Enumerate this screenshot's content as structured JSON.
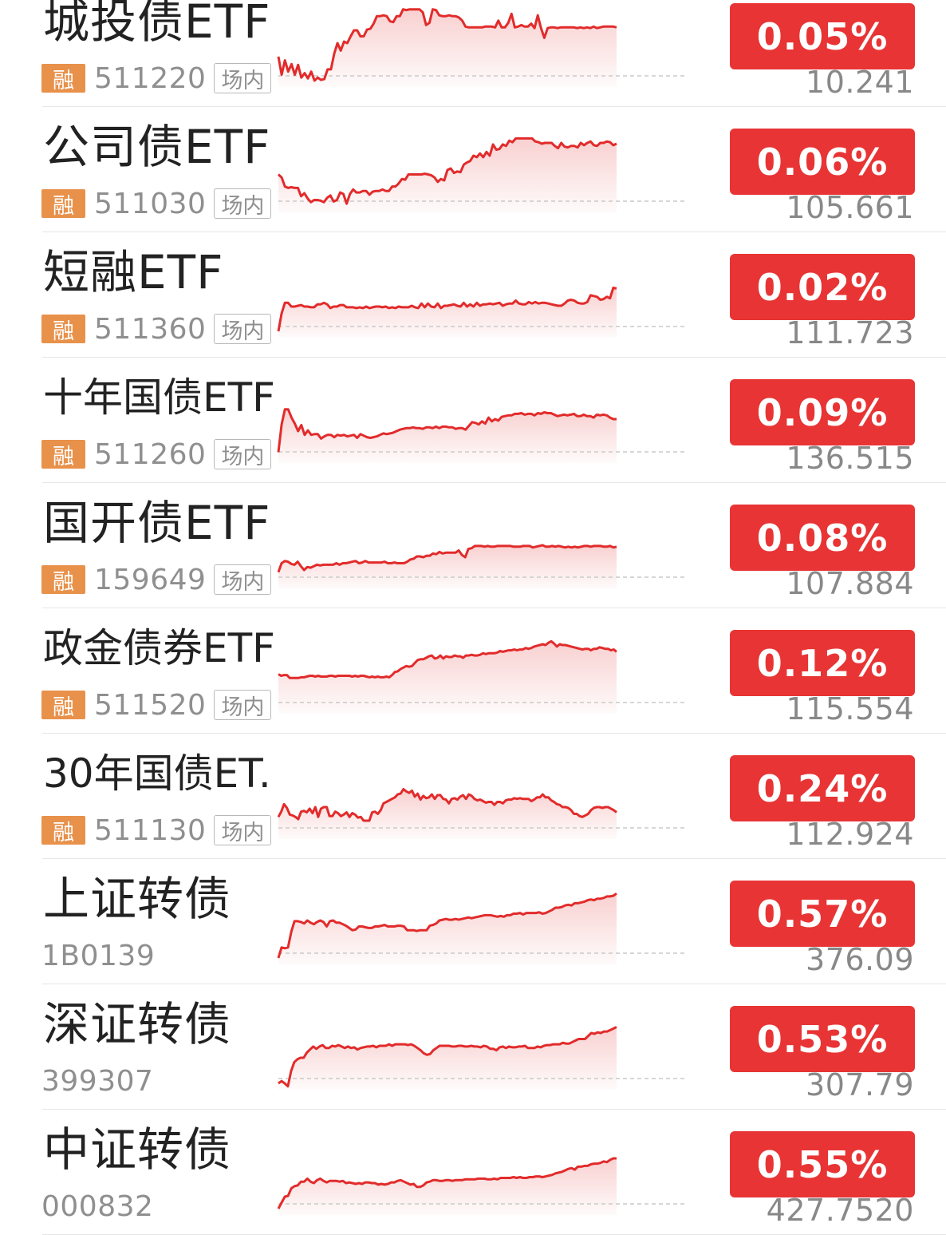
{
  "rows": [
    {
      "name": "城投债ETF",
      "margin": "融",
      "code": "511220",
      "venue": "场内",
      "change": "0.05%",
      "price": "10.241",
      "trend": [
        68,
        92,
        73,
        88,
        78,
        92,
        79,
        96,
        90,
        97,
        88,
        100,
        96,
        99,
        98,
        85,
        85,
        64,
        50,
        60,
        48,
        50,
        41,
        33,
        33,
        41,
        41,
        32,
        31,
        24,
        14,
        14,
        13,
        14,
        21,
        22,
        14,
        14,
        5,
        6,
        5,
        5,
        5,
        5,
        9,
        26,
        23,
        5,
        6,
        13,
        14,
        14,
        13,
        14,
        14,
        16,
        20,
        28,
        29,
        29,
        29,
        29,
        29,
        28,
        28,
        28,
        29,
        20,
        29,
        29,
        23,
        11,
        29,
        28,
        26,
        28,
        28,
        24,
        30,
        13,
        30,
        43,
        30,
        29,
        29,
        30,
        29,
        29,
        29,
        29,
        29,
        30,
        29,
        30,
        29,
        30,
        28,
        30,
        29,
        28,
        28,
        28,
        28,
        29
      ]
    },
    {
      "name": "公司债ETF",
      "margin": "融",
      "code": "511030",
      "venue": "场内",
      "change": "0.06%",
      "price": "105.661",
      "trend": [
        58,
        62,
        74,
        76,
        75,
        76,
        76,
        87,
        83,
        90,
        95,
        92,
        92,
        93,
        95,
        89,
        86,
        94,
        92,
        82,
        84,
        97,
        84,
        78,
        82,
        82,
        80,
        80,
        85,
        81,
        80,
        80,
        78,
        80,
        80,
        74,
        74,
        70,
        64,
        65,
        58,
        58,
        58,
        58,
        58,
        57,
        58,
        59,
        62,
        68,
        64,
        66,
        52,
        50,
        56,
        54,
        55,
        45,
        42,
        40,
        33,
        35,
        30,
        35,
        28,
        33,
        18,
        25,
        24,
        18,
        20,
        13,
        15,
        10,
        10,
        10,
        10,
        10,
        10,
        14,
        15,
        17,
        16,
        16,
        16,
        20,
        23,
        16,
        21,
        22,
        20,
        20,
        22,
        16,
        19,
        16,
        14,
        19,
        20,
        16,
        16,
        14,
        15,
        19,
        17
      ]
    },
    {
      "name": "短融ETF",
      "margin": "融",
      "code": "511360",
      "venue": "场内",
      "change": "0.02%",
      "price": "111.723",
      "trend": [
        100,
        76,
        62,
        62,
        67,
        67,
        66,
        65,
        67,
        67,
        68,
        68,
        64,
        64,
        62,
        64,
        69,
        67,
        67,
        65,
        65,
        68,
        68,
        68,
        69,
        68,
        69,
        67,
        69,
        68,
        67,
        67,
        68,
        67,
        69,
        68,
        69,
        67,
        68,
        68,
        68,
        66,
        68,
        69,
        63,
        68,
        63,
        67,
        68,
        63,
        69,
        66,
        66,
        65,
        64,
        66,
        67,
        62,
        67,
        64,
        67,
        62,
        66,
        64,
        64,
        63,
        64,
        63,
        62,
        66,
        64,
        63,
        63,
        59,
        63,
        64,
        64,
        61,
        63,
        61,
        63,
        62,
        62,
        63,
        64,
        65,
        66,
        66,
        63,
        59,
        58,
        59,
        62,
        63,
        63,
        61,
        52,
        53,
        54,
        58,
        57,
        54,
        56,
        42,
        43
      ]
    },
    {
      "name": "十年国债ETF",
      "margin": "融",
      "code": "511260",
      "venue": "场内",
      "change": "0.09%",
      "price": "136.515",
      "trend": [
        94,
        57,
        37,
        37,
        48,
        56,
        66,
        58,
        71,
        65,
        71,
        70,
        70,
        76,
        73,
        71,
        71,
        74,
        71,
        72,
        71,
        73,
        72,
        71,
        75,
        70,
        72,
        74,
        75,
        74,
        73,
        71,
        69,
        70,
        69,
        68,
        66,
        64,
        63,
        62,
        62,
        61,
        62,
        62,
        63,
        61,
        61,
        62,
        60,
        62,
        60,
        60,
        61,
        61,
        63,
        62,
        62,
        64,
        59,
        54,
        55,
        57,
        53,
        56,
        48,
        53,
        50,
        52,
        47,
        46,
        45,
        45,
        43,
        43,
        42,
        44,
        43,
        43,
        45,
        42,
        43,
        41,
        42,
        42,
        44,
        46,
        45,
        44,
        45,
        44,
        43,
        46,
        46,
        44,
        46,
        46,
        48,
        44,
        45,
        44,
        45,
        48,
        50,
        50
      ]
    },
    {
      "name": "国开债ETF",
      "margin": "融",
      "code": "159649",
      "venue": "场内",
      "change": "0.08%",
      "price": "107.884",
      "trend": [
        87,
        75,
        72,
        73,
        76,
        77,
        73,
        79,
        84,
        80,
        81,
        79,
        77,
        78,
        77,
        77,
        77,
        77,
        75,
        77,
        75,
        75,
        74,
        73,
        72,
        75,
        74,
        72,
        74,
        74,
        74,
        74,
        74,
        73,
        75,
        75,
        74,
        75,
        75,
        75,
        73,
        70,
        69,
        66,
        66,
        67,
        65,
        65,
        62,
        63,
        60,
        62,
        61,
        61,
        61,
        61,
        58,
        64,
        67,
        56,
        55,
        52,
        52,
        52,
        53,
        52,
        53,
        53,
        52,
        52,
        52,
        52,
        52,
        53,
        53,
        53,
        52,
        52,
        52,
        54,
        53,
        52,
        51,
        53,
        53,
        52,
        53,
        52,
        53,
        54,
        53,
        54,
        53,
        54,
        53,
        52,
        52,
        53,
        52,
        52,
        52,
        53,
        53,
        52,
        54,
        53
      ]
    },
    {
      "name": "政金债券ETF",
      "margin": "融",
      "code": "511520",
      "venue": "场内",
      "change": "0.12%",
      "price": "115.554",
      "trend": [
        56,
        58,
        57,
        57,
        61,
        61,
        61,
        61,
        60,
        60,
        59,
        58,
        58,
        59,
        58,
        59,
        59,
        59,
        58,
        58,
        59,
        58,
        58,
        58,
        58,
        58,
        59,
        58,
        59,
        58,
        58,
        59,
        60,
        59,
        60,
        59,
        60,
        60,
        59,
        60,
        57,
        53,
        52,
        49,
        47,
        45,
        46,
        45,
        41,
        37,
        36,
        36,
        34,
        32,
        31,
        35,
        34,
        31,
        35,
        32,
        33,
        33,
        31,
        32,
        32,
        34,
        31,
        31,
        30,
        31,
        31,
        30,
        28,
        29,
        28,
        28,
        28,
        27,
        25,
        26,
        25,
        24,
        24,
        23,
        24,
        23,
        23,
        21,
        22,
        21,
        19,
        18,
        17,
        16,
        17,
        14,
        12,
        15,
        19,
        16,
        17,
        17,
        18,
        19,
        20,
        21,
        22,
        23,
        22,
        22,
        24,
        22,
        22,
        20,
        21,
        22,
        22,
        24,
        23,
        26
      ]
    },
    {
      "name": "30年国债ET...",
      "margin": "融",
      "code": "511130",
      "venue": "场内",
      "change": "0.24%",
      "price": "112.924",
      "trend": [
        79,
        72,
        62,
        67,
        76,
        77,
        79,
        82,
        72,
        71,
        73,
        68,
        74,
        66,
        79,
        68,
        66,
        66,
        78,
        78,
        72,
        74,
        78,
        76,
        73,
        79,
        74,
        76,
        80,
        79,
        84,
        84,
        84,
        73,
        72,
        75,
        70,
        61,
        59,
        57,
        55,
        53,
        49,
        48,
        42,
        45,
        47,
        44,
        52,
        48,
        56,
        51,
        54,
        53,
        49,
        55,
        50,
        50,
        55,
        56,
        61,
        55,
        54,
        56,
        52,
        50,
        55,
        49,
        51,
        55,
        57,
        56,
        58,
        60,
        59,
        59,
        63,
        59,
        59,
        61,
        57,
        56,
        56,
        54,
        55,
        54,
        55,
        55,
        55,
        58,
        56,
        53,
        53,
        49,
        53,
        53,
        57,
        59,
        62,
        63,
        66,
        66,
        67,
        70,
        75,
        75,
        78,
        79,
        77,
        75,
        70,
        67,
        66,
        66,
        67,
        66,
        66,
        68,
        70,
        73
      ]
    },
    {
      "name": "上证转债",
      "margin": "",
      "code": "1B0139",
      "venue": "",
      "change": "0.57%",
      "price": "376.09",
      "trend": [
        100,
        86,
        87,
        86,
        65,
        51,
        51,
        52,
        54,
        50,
        53,
        55,
        52,
        50,
        52,
        58,
        51,
        50,
        53,
        53,
        55,
        57,
        60,
        63,
        62,
        58,
        58,
        59,
        60,
        60,
        58,
        58,
        57,
        56,
        58,
        58,
        58,
        57,
        57,
        58,
        63,
        63,
        63,
        64,
        63,
        63,
        63,
        57,
        56,
        54,
        50,
        49,
        48,
        49,
        49,
        48,
        49,
        48,
        47,
        46,
        47,
        46,
        45,
        44,
        43,
        43,
        43,
        44,
        45,
        44,
        45,
        43,
        43,
        41,
        41,
        40,
        42,
        40,
        40,
        40,
        40,
        39,
        41,
        40,
        38,
        36,
        33,
        33,
        32,
        30,
        29,
        30,
        27,
        27,
        26,
        25,
        23,
        22,
        23,
        21,
        21,
        20,
        18,
        18,
        17,
        14
      ]
    },
    {
      "name": "深证转债",
      "margin": "",
      "code": "399307",
      "venue": "",
      "change": "0.53%",
      "price": "307.79",
      "trend": [
        100,
        97,
        100,
        104,
        84,
        72,
        68,
        66,
        66,
        59,
        55,
        51,
        54,
        51,
        49,
        53,
        53,
        50,
        51,
        49,
        51,
        53,
        51,
        53,
        52,
        55,
        53,
        52,
        51,
        51,
        50,
        52,
        50,
        50,
        50,
        48,
        50,
        48,
        48,
        48,
        48,
        49,
        48,
        50,
        53,
        56,
        60,
        62,
        61,
        56,
        53,
        50,
        50,
        50,
        50,
        51,
        51,
        50,
        50,
        51,
        51,
        50,
        51,
        51,
        52,
        50,
        51,
        54,
        54,
        56,
        52,
        51,
        53,
        51,
        52,
        52,
        51,
        51,
        50,
        53,
        53,
        53,
        51,
        52,
        50,
        49,
        49,
        48,
        48,
        48,
        46,
        47,
        47,
        45,
        43,
        41,
        41,
        41,
        37,
        33,
        34,
        32,
        33,
        31,
        31,
        29,
        27,
        25
      ]
    },
    {
      "name": "中证转债",
      "margin": "",
      "code": "000832",
      "venue": "",
      "change": "0.55%",
      "price": "427.7520",
      "trend": [
        100,
        92,
        84,
        83,
        73,
        70,
        69,
        64,
        64,
        60,
        64,
        66,
        62,
        60,
        63,
        65,
        63,
        63,
        63,
        64,
        63,
        66,
        65,
        66,
        67,
        66,
        67,
        65,
        65,
        66,
        66,
        68,
        67,
        68,
        67,
        65,
        65,
        63,
        62,
        64,
        66,
        68,
        67,
        71,
        71,
        69,
        65,
        64,
        62,
        62,
        63,
        63,
        62,
        62,
        63,
        62,
        62,
        62,
        61,
        61,
        61,
        61,
        60,
        60,
        60,
        61,
        61,
        60,
        61,
        59,
        59,
        59,
        59,
        58,
        59,
        58,
        59,
        59,
        58,
        58,
        57,
        57,
        58,
        57,
        56,
        55,
        53,
        52,
        51,
        49,
        47,
        46,
        48,
        44,
        44,
        43,
        43,
        41,
        40,
        40,
        39,
        37,
        38,
        35,
        33,
        33
      ]
    }
  ],
  "colors": {
    "line": "#e22b2b",
    "badge": "#e83434",
    "margin_tag": "#e8914b"
  }
}
